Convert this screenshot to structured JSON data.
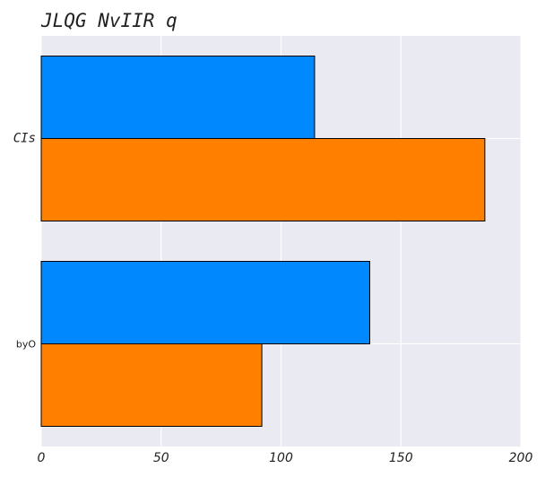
{
  "chart_data": {
    "type": "bar",
    "orientation": "horizontal",
    "title": "JLQG NvIIR q",
    "xlabel": "",
    "ylabel": "",
    "categories": [
      "CIs",
      "byO"
    ],
    "series": [
      {
        "values": [
          114,
          137
        ],
        "color": "#0088ff"
      },
      {
        "values": [
          185,
          92
        ],
        "color": "#ff8000"
      }
    ],
    "xlim": [
      0,
      200
    ],
    "xticks": [
      0,
      50,
      100,
      150,
      200
    ],
    "xtick_labels": [
      "0",
      "50",
      "100",
      "150",
      "200"
    ],
    "grid": true,
    "legend": "none",
    "plot_background": "#eaeaf2",
    "grid_color": "#ffffff"
  }
}
